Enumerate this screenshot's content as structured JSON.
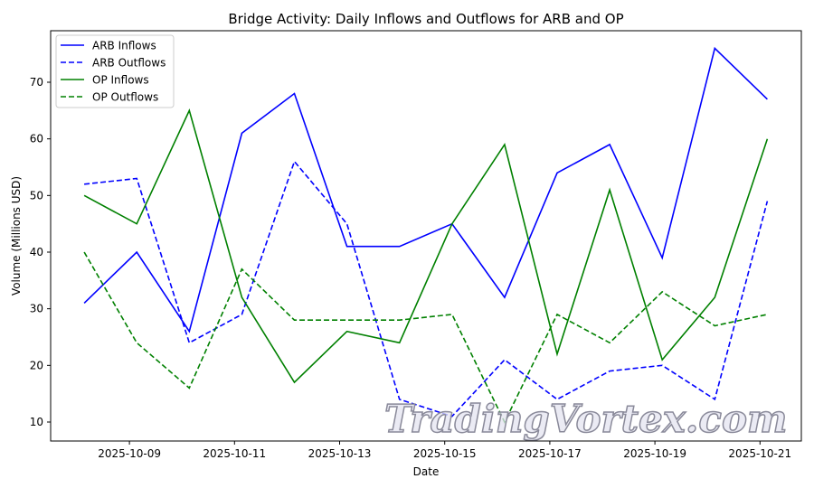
{
  "chart_data": {
    "type": "line",
    "title": "Bridge Activity: Daily Inflows and Outflows for ARB and OP",
    "xlabel": "Date",
    "ylabel": "Volume (Millions USD)",
    "x": [
      "2025-10-08",
      "2025-10-09",
      "2025-10-10",
      "2025-10-11",
      "2025-10-12",
      "2025-10-13",
      "2025-10-14",
      "2025-10-15",
      "2025-10-16",
      "2025-10-17",
      "2025-10-18",
      "2025-10-19",
      "2025-10-20",
      "2025-10-21"
    ],
    "xticks": [
      "2025-10-09",
      "2025-10-11",
      "2025-10-13",
      "2025-10-15",
      "2025-10-17",
      "2025-10-19",
      "2025-10-21"
    ],
    "yticks": [
      10,
      20,
      30,
      40,
      50,
      60,
      70
    ],
    "ylim": [
      6.75,
      79.25
    ],
    "grid": false,
    "legend_position": "top-left",
    "series": [
      {
        "name": "ARB Inflows",
        "color": "#0000ff",
        "dash": false,
        "values": [
          31,
          40,
          26,
          61,
          68,
          41,
          41,
          45,
          32,
          54,
          59,
          39,
          76,
          67
        ]
      },
      {
        "name": "ARB Outflows",
        "color": "#0000ff",
        "dash": true,
        "values": [
          52,
          53,
          24,
          29,
          56,
          45,
          14,
          11,
          21,
          14,
          19,
          20,
          14,
          49
        ]
      },
      {
        "name": "OP Inflows",
        "color": "#008000",
        "dash": false,
        "values": [
          50,
          45,
          65,
          32,
          17,
          26,
          24,
          45,
          59,
          22,
          51,
          21,
          32,
          60
        ]
      },
      {
        "name": "OP Outflows",
        "color": "#008000",
        "dash": true,
        "values": [
          40,
          24,
          16,
          37,
          28,
          28,
          28,
          29,
          10,
          29,
          24,
          33,
          27,
          29
        ]
      }
    ]
  },
  "watermark": "TradingVortex.com"
}
